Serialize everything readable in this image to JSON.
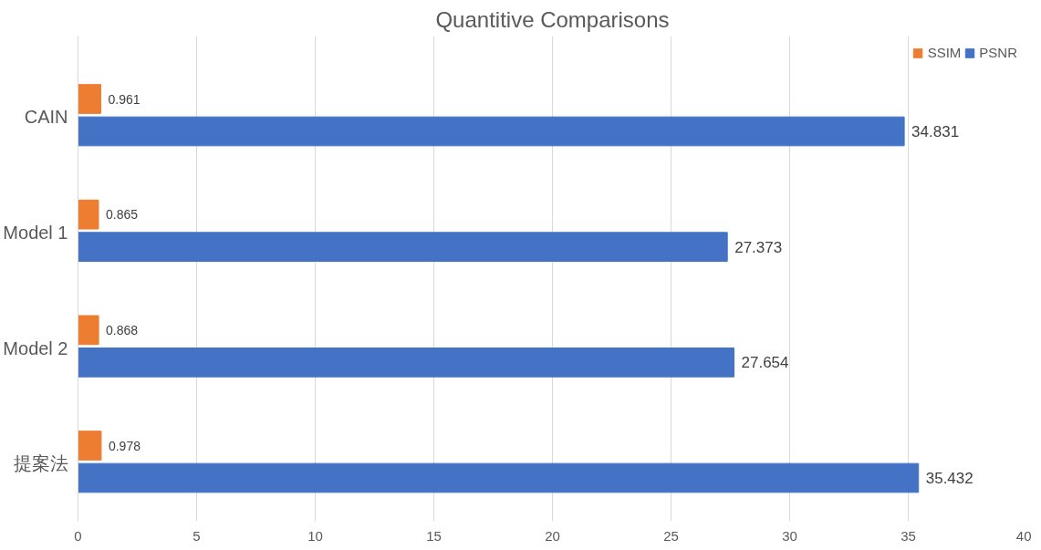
{
  "chart_data": {
    "type": "bar",
    "orientation": "horizontal",
    "title": "Quantitive Comparisons",
    "categories": [
      "CAIN",
      "Model 1",
      "Model 2",
      "提案法"
    ],
    "series": [
      {
        "name": "SSIM",
        "color": "#ed7d31",
        "values": [
          0.961,
          0.865,
          0.868,
          0.978
        ]
      },
      {
        "name": "PSNR",
        "color": "#4472c4",
        "values": [
          34.831,
          27.373,
          27.654,
          35.432
        ]
      }
    ],
    "xlim": [
      0,
      40
    ],
    "xticks": [
      0,
      5,
      10,
      15,
      20,
      25,
      30,
      35,
      40
    ],
    "grid": "x",
    "legend": "top right",
    "data_labels": true
  }
}
